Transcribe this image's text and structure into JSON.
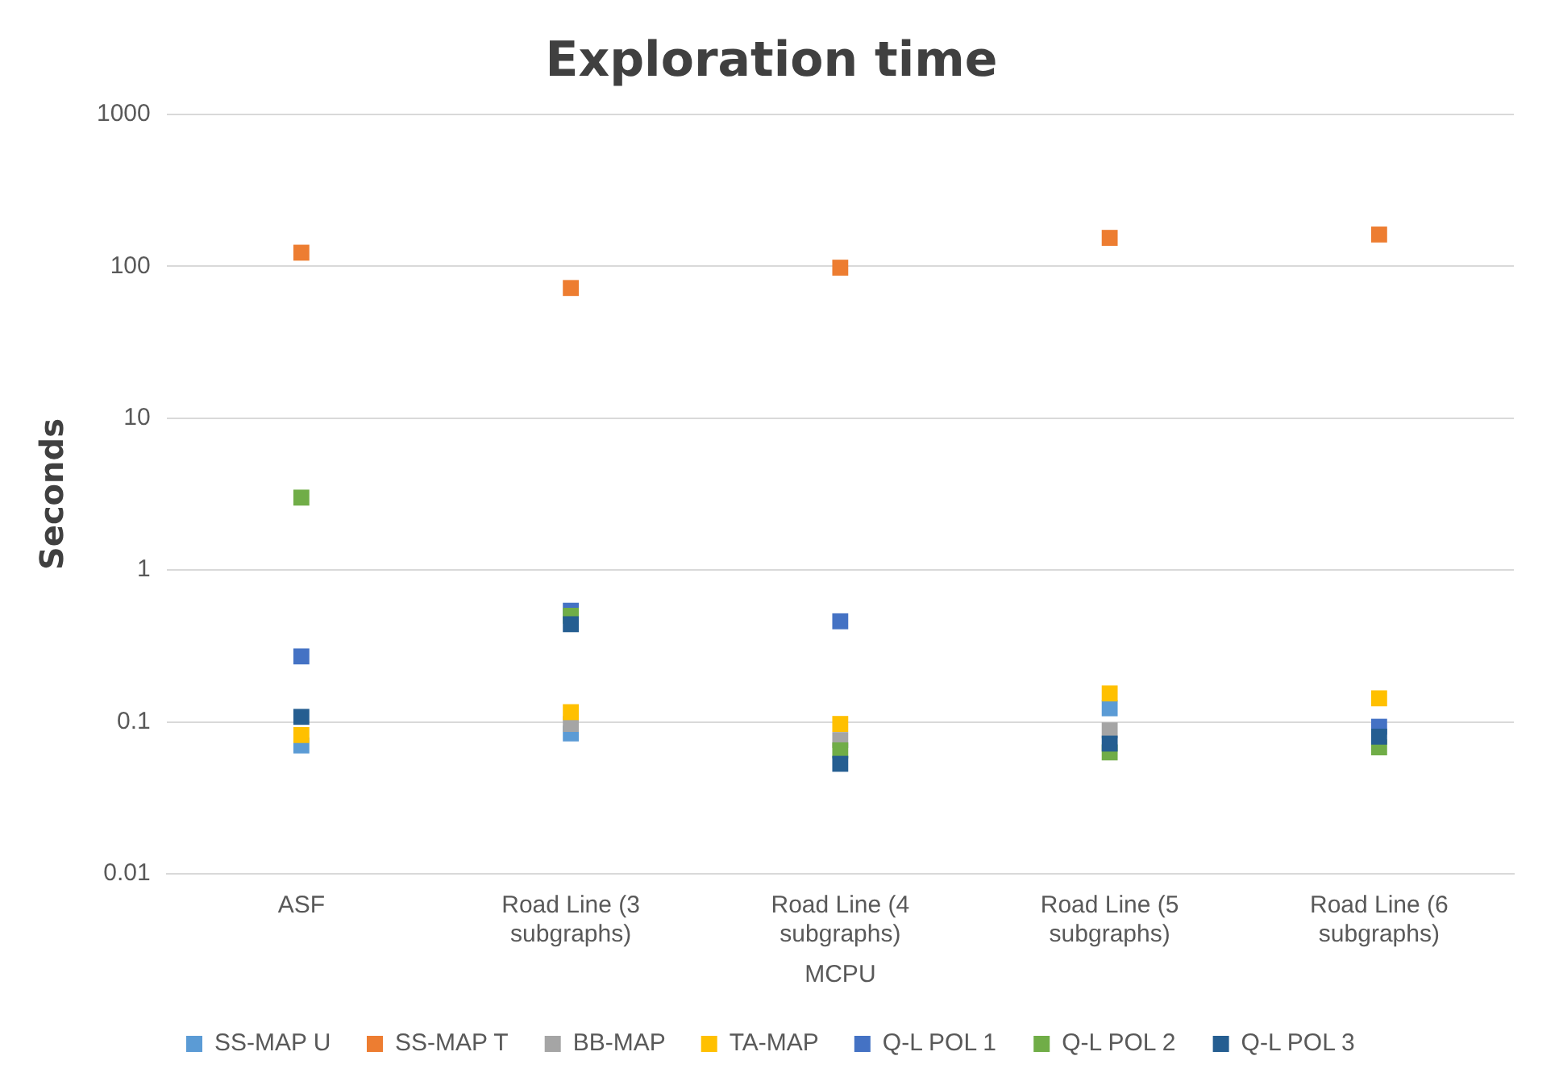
{
  "chart_data": {
    "type": "scatter",
    "title": "Exploration time",
    "xlabel": "MCPU",
    "ylabel": "Seconds",
    "categories": [
      "ASF",
      "Road Line (3 subgraphs)",
      "Road Line (4 subgraphs)",
      "Road Line (5 subgraphs)",
      "Road Line (6 subgraphs)"
    ],
    "series": [
      {
        "name": "SS-MAP U",
        "color": "#5b9bd5",
        "values": [
          0.07,
          0.084,
          null,
          0.123,
          null
        ]
      },
      {
        "name": "SS-MAP T",
        "color": "#ed7d31",
        "values": [
          123,
          72,
          98,
          154,
          162
        ]
      },
      {
        "name": "BB-MAP",
        "color": "#a5a5a5",
        "values": [
          null,
          0.097,
          0.076,
          0.088,
          null
        ]
      },
      {
        "name": "TA-MAP",
        "color": "#ffc000",
        "values": [
          0.082,
          0.116,
          0.097,
          0.154,
          0.143
        ]
      },
      {
        "name": "Q-L POL 1",
        "color": "#4472c4",
        "values": [
          0.27,
          0.54,
          0.46,
          null,
          0.093
        ]
      },
      {
        "name": "Q-L POL 2",
        "color": "#70ad47",
        "values": [
          3,
          0.5,
          0.065,
          0.063,
          0.068
        ]
      },
      {
        "name": "Q-L POL 3",
        "color": "#255e91",
        "values": [
          0.108,
          0.44,
          0.053,
          0.072,
          0.08
        ]
      }
    ],
    "log": "y",
    "ylim": [
      0.01,
      1000
    ],
    "yticks": [
      0.01,
      0.1,
      1,
      10,
      100,
      1000
    ],
    "grid": "y",
    "legend": "bottom",
    "marker": "square"
  }
}
